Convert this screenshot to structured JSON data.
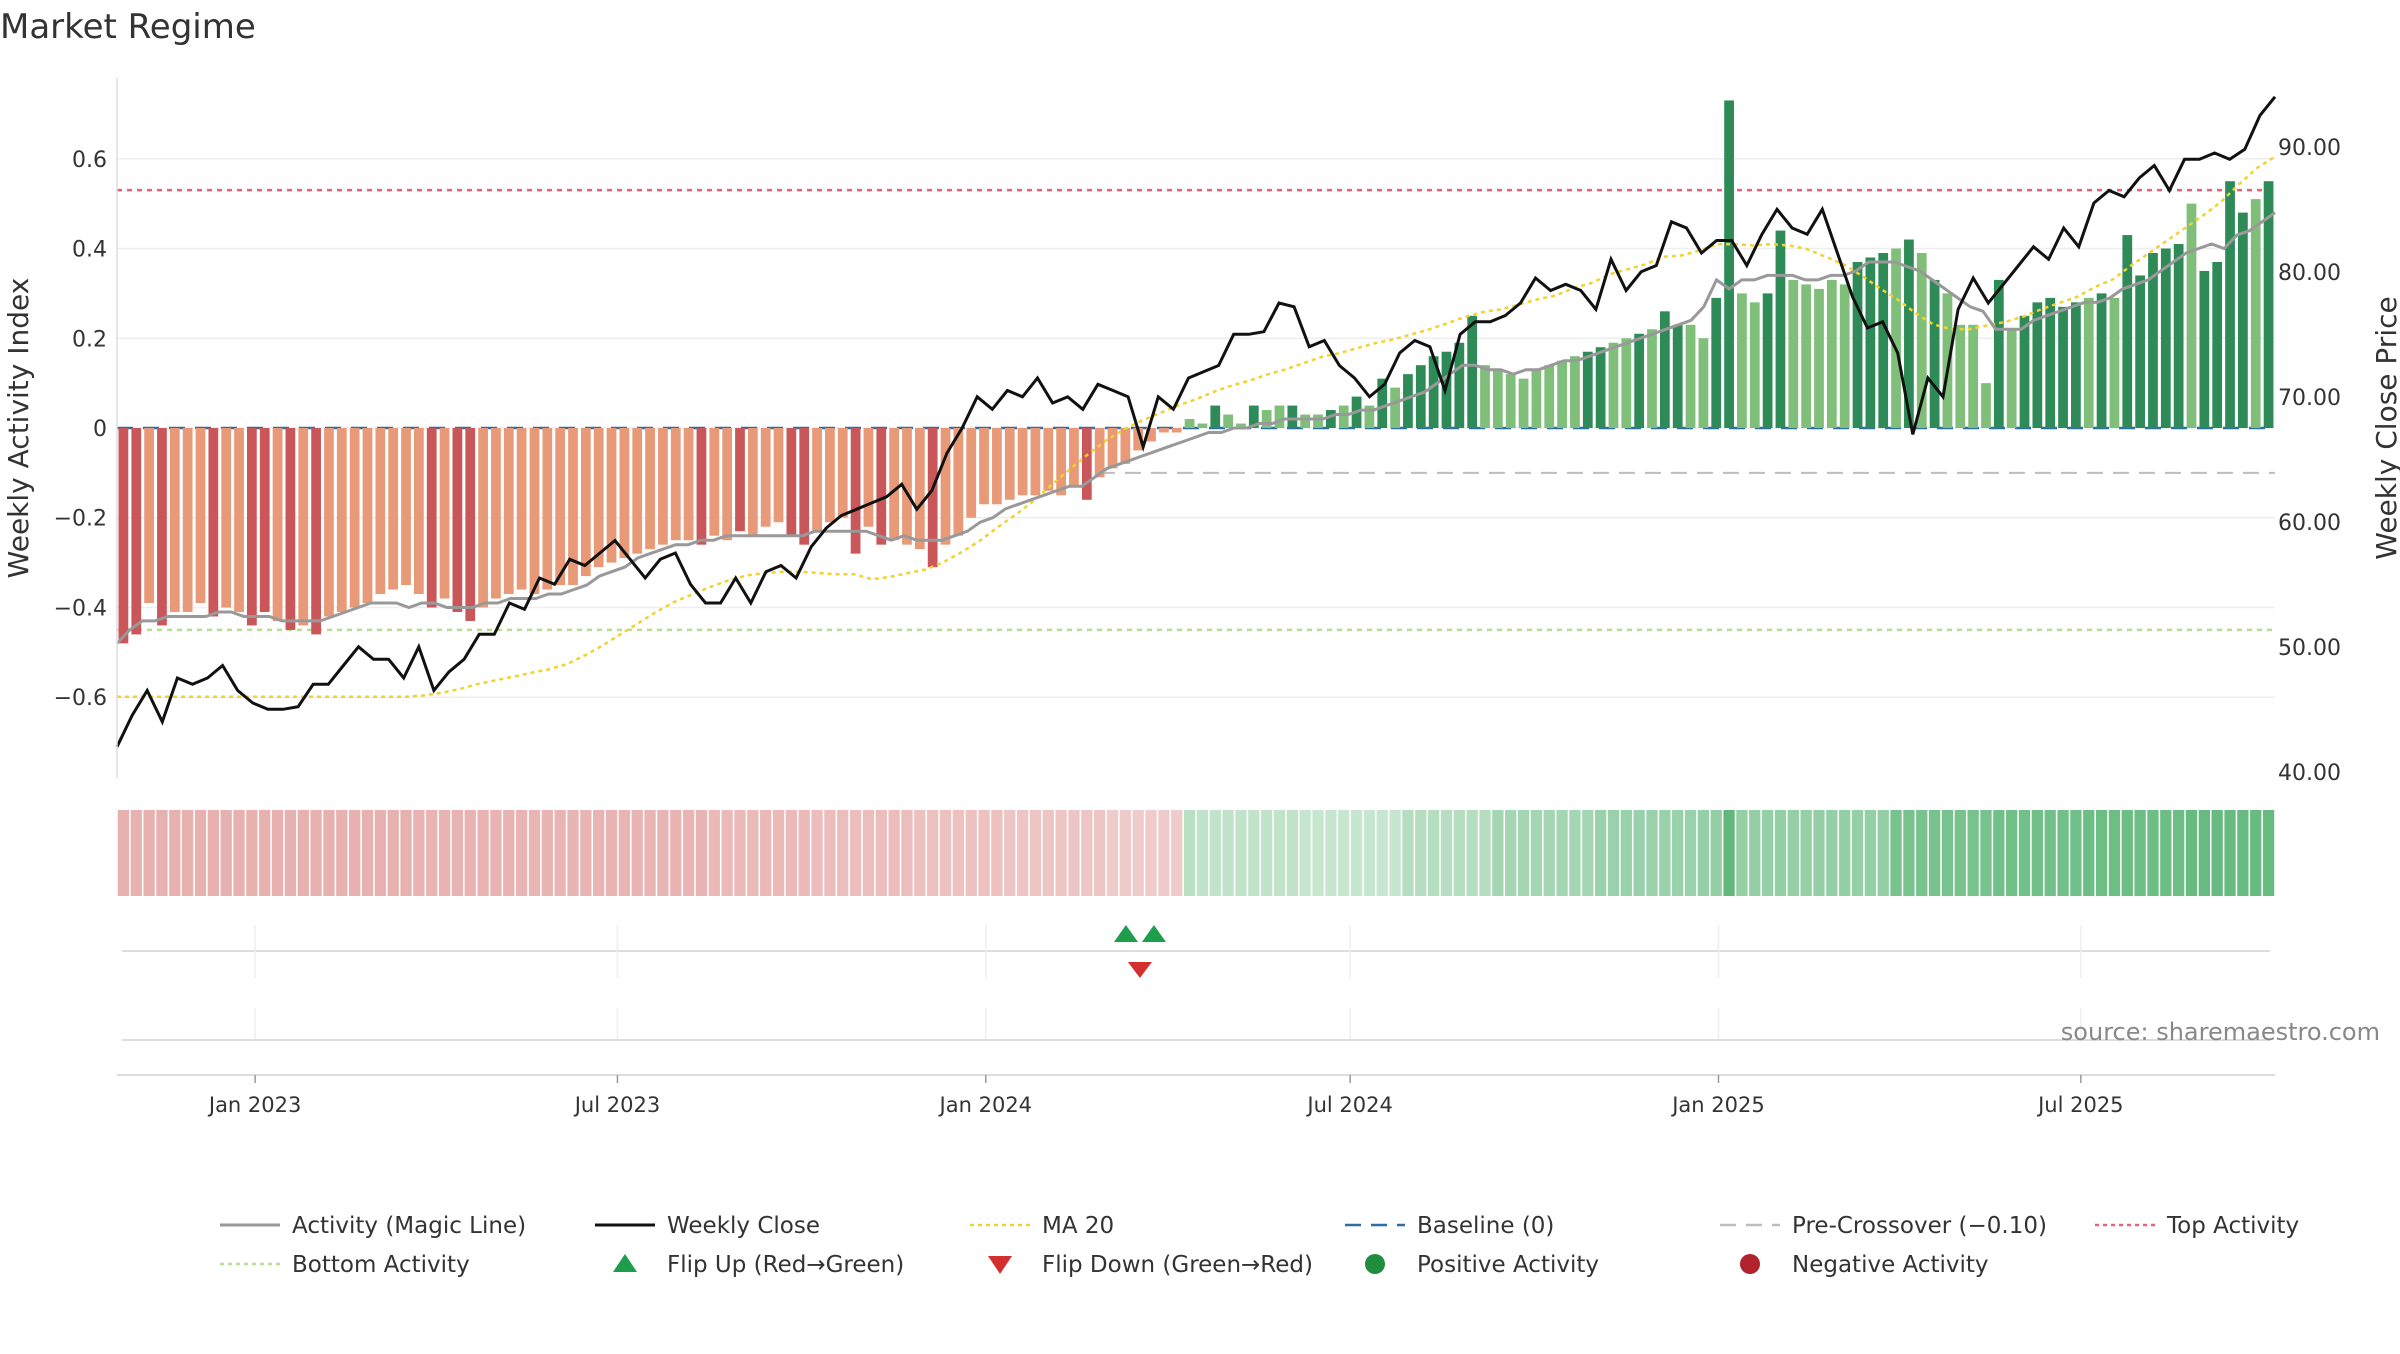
{
  "title": "Market Regime",
  "source": "source: sharemaestro.com",
  "colors": {
    "neg_light": "#E89A78",
    "neg_dark": "#C9575A",
    "pos_light": "#7FBF7A",
    "pos_dark": "#2E8B57",
    "magic_line": "#999999",
    "weekly_close": "#111111",
    "ma20": "#F2D22E",
    "baseline": "#2B6FA6",
    "pre_crossover": "#BDBDBD",
    "top_activity": "#E8607A",
    "bottom_activity": "#B7DE8C",
    "flip_up": "#1E9E4A",
    "flip_down": "#D32F2F"
  },
  "chart_data": {
    "type": "bar",
    "title": "Market Regime",
    "left_axis": {
      "label": "Weekly Activity Index",
      "ticks": [
        0.6,
        0.4,
        0.2,
        0,
        -0.2,
        -0.4,
        -0.6
      ],
      "tick_labels": [
        "0.6",
        "0.4",
        "0.2",
        "0",
        "−0.2",
        "−0.4",
        "−0.6"
      ],
      "ylim": [
        -0.78,
        0.78
      ]
    },
    "right_axis": {
      "label": "Weekly Close Price",
      "ticks": [
        90,
        80,
        70,
        60,
        50,
        40
      ],
      "tick_labels": [
        "90.00",
        "80.00",
        "70.00",
        "60.00",
        "50.00",
        "40.00"
      ],
      "ylim": [
        39.5,
        95.5
      ]
    },
    "x_axis": {
      "start": "2022-10-24",
      "end": "2025-10-06",
      "tick_dates": [
        "2023-01-01",
        "2023-07-01",
        "2024-01-01",
        "2024-07-01",
        "2025-01-01",
        "2025-07-01"
      ],
      "tick_labels": [
        "Jan 2023",
        "Jul 2023",
        "Jan 2024",
        "Jul 2024",
        "Jan 2025",
        "Jul 2025"
      ]
    },
    "reference_lines": {
      "baseline": 0,
      "pre_crossover": -0.1,
      "top_activity": 0.53,
      "bottom_activity": -0.45
    },
    "series": [
      {
        "name": "Weekly Activity Index",
        "kind": "bar",
        "values": [
          -0.48,
          -0.46,
          -0.39,
          -0.44,
          -0.41,
          -0.41,
          -0.39,
          -0.42,
          -0.4,
          -0.41,
          -0.44,
          -0.41,
          -0.43,
          -0.45,
          -0.44,
          -0.46,
          -0.42,
          -0.41,
          -0.4,
          -0.39,
          -0.37,
          -0.36,
          -0.35,
          -0.37,
          -0.4,
          -0.38,
          -0.41,
          -0.43,
          -0.4,
          -0.38,
          -0.37,
          -0.36,
          -0.37,
          -0.36,
          -0.35,
          -0.35,
          -0.33,
          -0.31,
          -0.3,
          -0.29,
          -0.28,
          -0.27,
          -0.26,
          -0.25,
          -0.25,
          -0.26,
          -0.24,
          -0.25,
          -0.23,
          -0.24,
          -0.22,
          -0.21,
          -0.24,
          -0.26,
          -0.23,
          -0.21,
          -0.2,
          -0.28,
          -0.22,
          -0.26,
          -0.25,
          -0.26,
          -0.27,
          -0.31,
          -0.26,
          -0.24,
          -0.2,
          -0.17,
          -0.17,
          -0.16,
          -0.15,
          -0.15,
          -0.14,
          -0.15,
          -0.13,
          -0.16,
          -0.11,
          -0.09,
          -0.08,
          -0.05,
          -0.03,
          -0.01,
          -0.01,
          0.02,
          0.01,
          0.05,
          0.03,
          0.01,
          0.05,
          0.04,
          0.05,
          0.05,
          0.03,
          0.03,
          0.04,
          0.05,
          0.07,
          0.05,
          0.11,
          0.09,
          0.12,
          0.14,
          0.16,
          0.17,
          0.19,
          0.25,
          0.14,
          0.13,
          0.12,
          0.11,
          0.13,
          0.14,
          0.15,
          0.16,
          0.17,
          0.18,
          0.19,
          0.2,
          0.21,
          0.22,
          0.26,
          0.23,
          0.23,
          0.2,
          0.29,
          0.73,
          0.3,
          0.28,
          0.3,
          0.44,
          0.33,
          0.32,
          0.31,
          0.33,
          0.32,
          0.37,
          0.38,
          0.39,
          0.4,
          0.42,
          0.39,
          0.33,
          0.3,
          0.23,
          0.23,
          0.1,
          0.33,
          0.22,
          0.25,
          0.28,
          0.29,
          0.27,
          0.28,
          0.29,
          0.3,
          0.29,
          0.43,
          0.34,
          0.39,
          0.4,
          0.41,
          0.5,
          0.35,
          0.37,
          0.55,
          0.48,
          0.51,
          0.55
        ],
        "shade_levels": [
          2,
          2,
          1,
          2,
          1,
          1,
          1,
          2,
          1,
          1,
          2,
          2,
          1,
          2,
          1,
          2,
          1,
          1,
          1,
          1,
          1,
          1,
          1,
          1,
          2,
          1,
          2,
          2,
          1,
          1,
          1,
          1,
          1,
          1,
          1,
          1,
          1,
          1,
          1,
          1,
          1,
          1,
          1,
          1,
          1,
          2,
          1,
          1,
          2,
          1,
          1,
          1,
          2,
          2,
          1,
          1,
          1,
          2,
          1,
          2,
          1,
          1,
          1,
          2,
          1,
          1,
          1,
          1,
          1,
          1,
          1,
          1,
          1,
          1,
          1,
          2,
          1,
          1,
          1,
          1,
          1,
          1,
          1,
          1,
          1,
          2,
          1,
          1,
          2,
          1,
          1,
          2,
          1,
          1,
          2,
          1,
          2,
          1,
          2,
          1,
          2,
          2,
          2,
          2,
          2,
          2,
          1,
          1,
          1,
          1,
          1,
          1,
          1,
          1,
          2,
          2,
          1,
          1,
          2,
          1,
          2,
          2,
          1,
          1,
          2,
          2,
          1,
          1,
          2,
          2,
          1,
          1,
          1,
          1,
          1,
          2,
          2,
          2,
          1,
          2,
          1,
          2,
          1,
          1,
          1,
          1,
          2,
          1,
          2,
          2,
          2,
          2,
          2,
          1,
          2,
          1,
          2,
          2,
          2,
          2,
          2,
          1,
          2,
          2,
          2,
          2,
          1,
          2,
          2,
          2,
          1,
          2,
          2,
          2
        ]
      },
      {
        "name": "Activity (Magic Line)",
        "kind": "line",
        "values": [
          -0.48,
          -0.45,
          -0.43,
          -0.43,
          -0.42,
          -0.42,
          -0.42,
          -0.42,
          -0.41,
          -0.41,
          -0.42,
          -0.42,
          -0.42,
          -0.43,
          -0.43,
          -0.43,
          -0.43,
          -0.42,
          -0.41,
          -0.4,
          -0.39,
          -0.39,
          -0.39,
          -0.4,
          -0.39,
          -0.39,
          -0.4,
          -0.4,
          -0.4,
          -0.39,
          -0.39,
          -0.38,
          -0.38,
          -0.38,
          -0.37,
          -0.37,
          -0.36,
          -0.35,
          -0.33,
          -0.32,
          -0.31,
          -0.29,
          -0.28,
          -0.27,
          -0.26,
          -0.26,
          -0.25,
          -0.25,
          -0.24,
          -0.24,
          -0.24,
          -0.24,
          -0.24,
          -0.24,
          -0.24,
          -0.23,
          -0.23,
          -0.23,
          -0.23,
          -0.23,
          -0.24,
          -0.25,
          -0.24,
          -0.25,
          -0.25,
          -0.25,
          -0.24,
          -0.23,
          -0.21,
          -0.2,
          -0.18,
          -0.17,
          -0.16,
          -0.15,
          -0.14,
          -0.13,
          -0.13,
          -0.11,
          -0.09,
          -0.08,
          -0.07,
          -0.06,
          -0.05,
          -0.04,
          -0.03,
          -0.02,
          -0.01,
          -0.01,
          0.0,
          0.0,
          0.01,
          0.01,
          0.02,
          0.02,
          0.02,
          0.02,
          0.03,
          0.03,
          0.04,
          0.04,
          0.05,
          0.06,
          0.07,
          0.08,
          0.1,
          0.12,
          0.14,
          0.14,
          0.13,
          0.13,
          0.12,
          0.13,
          0.13,
          0.14,
          0.15,
          0.15,
          0.16,
          0.17,
          0.18,
          0.19,
          0.2,
          0.21,
          0.22,
          0.23,
          0.24,
          0.27,
          0.33,
          0.31,
          0.33,
          0.33,
          0.34,
          0.34,
          0.34,
          0.33,
          0.33,
          0.34,
          0.34,
          0.35,
          0.37,
          0.37,
          0.37,
          0.36,
          0.35,
          0.33,
          0.31,
          0.29,
          0.27,
          0.26,
          0.22,
          0.22,
          0.22,
          0.24,
          0.25,
          0.26,
          0.27,
          0.28,
          0.28,
          0.29,
          0.31,
          0.32,
          0.33,
          0.35,
          0.37,
          0.39,
          0.4,
          0.41,
          0.4,
          0.43,
          0.44,
          0.46,
          0.48
        ]
      },
      {
        "name": "Weekly Close",
        "kind": "line",
        "axis": "right",
        "values": [
          42.0,
          44.5,
          46.5,
          44.0,
          47.5,
          47.0,
          47.5,
          48.5,
          46.5,
          45.5,
          45.0,
          45.0,
          45.2,
          47.0,
          47.0,
          48.5,
          50.0,
          49.0,
          49.0,
          47.5,
          50.0,
          46.5,
          48.0,
          49.0,
          51.0,
          51.0,
          53.5,
          53.0,
          55.5,
          55.0,
          57.0,
          56.5,
          57.5,
          58.5,
          57.0,
          55.5,
          57.0,
          57.5,
          55.0,
          53.5,
          53.5,
          55.5,
          53.5,
          56.0,
          56.5,
          55.5,
          58.0,
          59.5,
          60.5,
          61.0,
          61.5,
          62.0,
          63.0,
          61.0,
          62.5,
          65.5,
          67.5,
          70.0,
          69.0,
          70.5,
          70.0,
          71.5,
          69.5,
          70.0,
          69.0,
          71.0,
          70.5,
          70.0,
          66.0,
          70.0,
          69.0,
          71.5,
          72.0,
          72.5,
          75.0,
          75.0,
          75.2,
          77.5,
          77.2,
          74.0,
          74.5,
          72.5,
          71.5,
          70.0,
          71.0,
          73.5,
          74.5,
          74.0,
          70.5,
          75.0,
          76.0,
          76.0,
          76.5,
          77.5,
          79.5,
          78.5,
          79.0,
          78.5,
          77.0,
          81.0,
          78.5,
          80.0,
          80.5,
          84.0,
          83.5,
          81.5,
          82.5,
          82.5,
          80.5,
          83.0,
          85.0,
          83.5,
          83.0,
          85.0,
          81.5,
          78.0,
          75.5,
          76.0,
          73.5,
          67.0,
          71.5,
          70.0,
          77.0,
          79.5,
          77.5,
          79.0,
          80.5,
          82.0,
          81.0,
          83.5,
          82.0,
          85.5,
          86.5,
          86.0,
          87.5,
          88.5,
          86.5,
          89.0,
          89.0,
          89.5,
          89.0,
          89.8,
          92.5,
          94.0
        ]
      },
      {
        "name": "MA 20",
        "kind": "line",
        "axis": "right",
        "values": [
          46.0,
          46.0,
          46.0,
          46.0,
          46.0,
          46.0,
          46.0,
          46.0,
          46.0,
          46.0,
          46.0,
          46.0,
          46.0,
          46.0,
          46.0,
          46.0,
          46.0,
          46.1,
          46.3,
          46.6,
          47.0,
          47.3,
          47.6,
          47.9,
          48.2,
          48.6,
          49.3,
          50.1,
          51.0,
          51.9,
          52.8,
          53.6,
          54.2,
          54.8,
          55.3,
          55.7,
          55.9,
          56.0,
          56.0,
          55.9,
          55.8,
          55.8,
          55.4,
          55.6,
          55.9,
          56.2,
          56.8,
          57.6,
          58.5,
          59.6,
          60.6,
          61.7,
          63.0,
          64.2,
          65.4,
          66.5,
          67.4,
          68.1,
          68.7,
          69.3,
          69.8,
          70.4,
          70.9,
          71.3,
          71.8,
          72.2,
          72.7,
          73.2,
          73.5,
          73.9,
          74.3,
          74.6,
          75.0,
          75.4,
          75.9,
          76.4,
          76.8,
          77.0,
          77.4,
          77.8,
          78.1,
          78.7,
          79.1,
          79.8,
          80.2,
          80.6,
          81.2,
          81.3,
          81.7,
          82.2,
          82.2,
          82.1,
          82.2,
          82.1,
          81.8,
          81.2,
          80.6,
          79.7,
          78.7,
          77.8,
          76.7,
          75.8,
          75.4,
          75.4,
          75.7,
          76.0,
          76.4,
          77.0,
          77.5,
          78.0,
          78.8,
          79.4,
          80.5,
          81.5,
          82.5,
          83.5,
          84.5,
          85.6,
          87.0,
          88.3,
          89.2
        ]
      }
    ],
    "heat_strip_levels": [
      0.55,
      0.55,
      0.55,
      0.52,
      0.5,
      0.5,
      0.45,
      0.4,
      0.35,
      0.3,
      0.22,
      0.15,
      0.08,
      0.25,
      0.4,
      0.5,
      0.55,
      0.55,
      0.8,
      0.85,
      0.9,
      0.95
    ],
    "flip_events": {
      "flip_up": [
        "2024-03-11",
        "2024-03-25"
      ],
      "flip_down": [
        "2024-03-18"
      ]
    },
    "legend": [
      {
        "label": "Activity (Magic Line)",
        "marker": "solid-line",
        "color_key": "magic_line"
      },
      {
        "label": "Weekly Close",
        "marker": "solid-line",
        "color_key": "weekly_close"
      },
      {
        "label": "MA 20",
        "marker": "dotted-line",
        "color_key": "ma20"
      },
      {
        "label": "Baseline (0)",
        "marker": "dashed-line",
        "color_key": "baseline"
      },
      {
        "label": "Pre-Crossover (−0.10)",
        "marker": "dashed-line",
        "color_key": "pre_crossover"
      },
      {
        "label": "Top Activity",
        "marker": "dotted-line",
        "color_key": "top_activity"
      },
      {
        "label": "Bottom Activity",
        "marker": "dotted-line",
        "color_key": "bottom_activity"
      },
      {
        "label": "Flip Up (Red→Green)",
        "marker": "triangle-up",
        "color_key": "flip_up"
      },
      {
        "label": "Flip Down (Green→Red)",
        "marker": "triangle-down",
        "color_key": "flip_down"
      },
      {
        "label": "Positive Activity",
        "marker": "circle",
        "color_key": "pos_dark_marker"
      },
      {
        "label": "Negative Activity",
        "marker": "circle",
        "color_key": "neg_dark_marker"
      }
    ],
    "legend_placement": "bottom"
  }
}
